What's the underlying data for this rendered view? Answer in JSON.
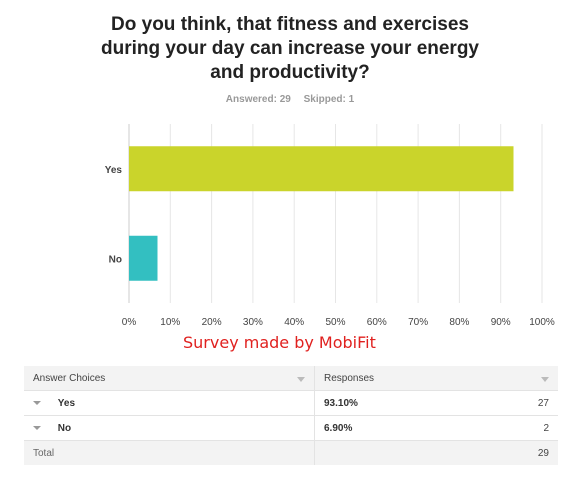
{
  "question": {
    "lines": [
      "Do you think, that fitness and exercises",
      "during your day can increase your energy",
      "and productivity?"
    ]
  },
  "answered_label": "Answered: 29",
  "skipped_label": "Skipped: 1",
  "note": "Survey made by MobiFit",
  "chart_data": {
    "type": "bar",
    "orientation": "horizontal",
    "categories": [
      "Yes",
      "No"
    ],
    "values": [
      93.1,
      6.9
    ],
    "colors": [
      "#cad42b",
      "#33bfc1"
    ],
    "xlim": [
      0,
      100
    ],
    "xticks": [
      "0%",
      "10%",
      "20%",
      "30%",
      "40%",
      "50%",
      "60%",
      "70%",
      "80%",
      "90%",
      "100%"
    ],
    "title": "",
    "xlabel": "",
    "ylabel": "",
    "grid": true
  },
  "table": {
    "headers": [
      "Answer Choices",
      "Responses"
    ],
    "rows": [
      {
        "choice": "Yes",
        "percent": "93.10%",
        "count": "27"
      },
      {
        "choice": "No",
        "percent": "6.90%",
        "count": "2"
      }
    ],
    "total_label": "Total",
    "total_count": "29"
  }
}
